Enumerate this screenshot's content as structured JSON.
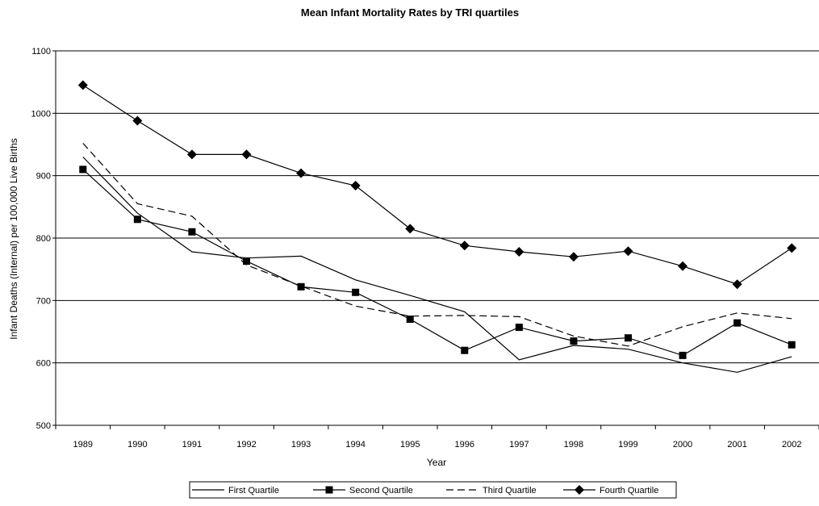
{
  "chart_data": {
    "type": "line",
    "title": "Mean Infant Mortality Rates by TRI quartiles",
    "xlabel": "Year",
    "ylabel": "Infant Deaths (Internal) per 100,000 Live Births",
    "ylim": [
      500,
      1100
    ],
    "yticks": [
      500,
      600,
      700,
      800,
      900,
      1000,
      1100
    ],
    "grid": "horizontal",
    "legend_position": "bottom",
    "categories": [
      "1989",
      "1990",
      "1991",
      "1992",
      "1993",
      "1994",
      "1995",
      "1996",
      "1997",
      "1998",
      "1999",
      "2000",
      "2001",
      "2002"
    ],
    "series": [
      {
        "name": "First Quartile",
        "style": "solid",
        "marker": "none",
        "color": "#000000",
        "values": [
          930,
          840,
          778,
          768,
          771,
          733,
          708,
          682,
          605,
          628,
          622,
          600,
          585,
          610
        ]
      },
      {
        "name": "Second Quartile",
        "style": "solid",
        "marker": "square",
        "color": "#000000",
        "values": [
          910,
          830,
          810,
          763,
          722,
          713,
          670,
          620,
          657,
          635,
          640,
          612,
          664,
          629
        ]
      },
      {
        "name": "Third Quartile",
        "style": "dashed",
        "marker": "none",
        "color": "#000000",
        "values": [
          952,
          855,
          835,
          757,
          723,
          691,
          675,
          676,
          674,
          643,
          627,
          658,
          680,
          671
        ]
      },
      {
        "name": "Fourth Quartile",
        "style": "solid",
        "marker": "diamond",
        "color": "#000000",
        "values": [
          1045,
          988,
          934,
          934,
          904,
          884,
          815,
          788,
          778,
          770,
          779,
          755,
          726,
          784
        ]
      }
    ]
  }
}
